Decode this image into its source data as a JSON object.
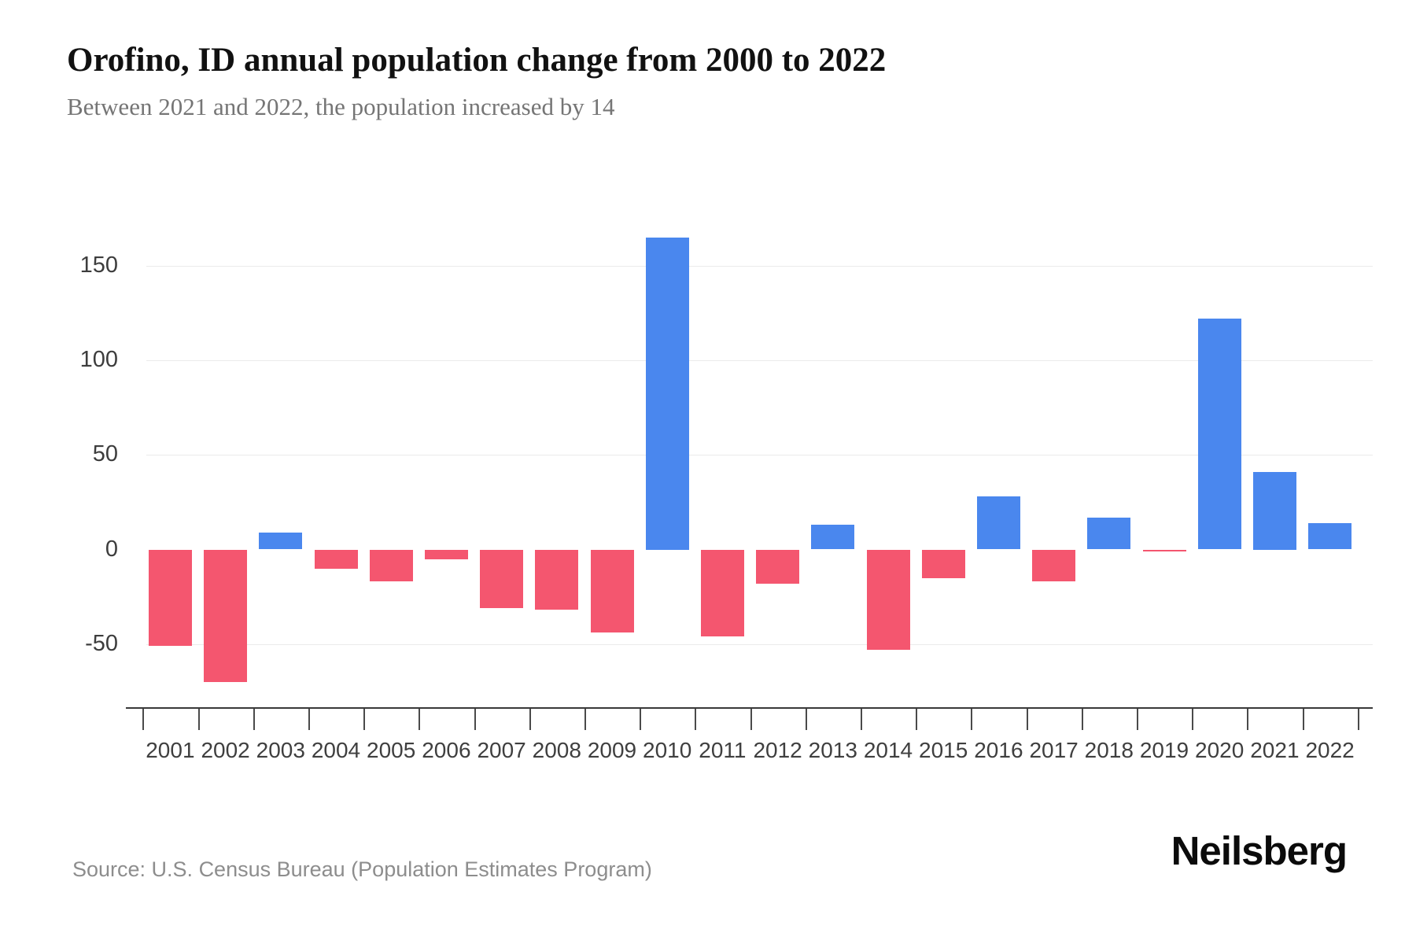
{
  "header": {
    "title": "Orofino, ID annual population change from 2000 to 2022",
    "subtitle": "Between 2021 and 2022, the population increased by 14"
  },
  "chart_data": {
    "type": "bar",
    "title": "Orofino, ID annual population change from 2000 to 2022",
    "subtitle": "Between 2021 and 2022, the population increased by 14",
    "categories": [
      "2001",
      "2002",
      "2003",
      "2004",
      "2005",
      "2006",
      "2007",
      "2008",
      "2009",
      "2010",
      "2011",
      "2012",
      "2013",
      "2014",
      "2015",
      "2016",
      "2017",
      "2018",
      "2019",
      "2020",
      "2021",
      "2022"
    ],
    "values": [
      -51,
      -70,
      9,
      -10,
      -17,
      -5,
      -31,
      -32,
      -44,
      165,
      -46,
      -18,
      13,
      -53,
      -15,
      28,
      -17,
      17,
      -1,
      122,
      41,
      14
    ],
    "xlabel": "",
    "ylabel": "",
    "yticks": [
      150,
      100,
      50,
      0,
      -50
    ],
    "ylim": [
      -84,
      180
    ],
    "grid": true,
    "legend_position": "none",
    "colors": {
      "positive": "#4a87ee",
      "negative": "#f4566f",
      "gridline": "#ebebeb",
      "axis": "#3a3a3a"
    }
  },
  "footer": {
    "source": "Source: U.S. Census Bureau (Population Estimates Program)",
    "brand": "Neilsberg"
  }
}
